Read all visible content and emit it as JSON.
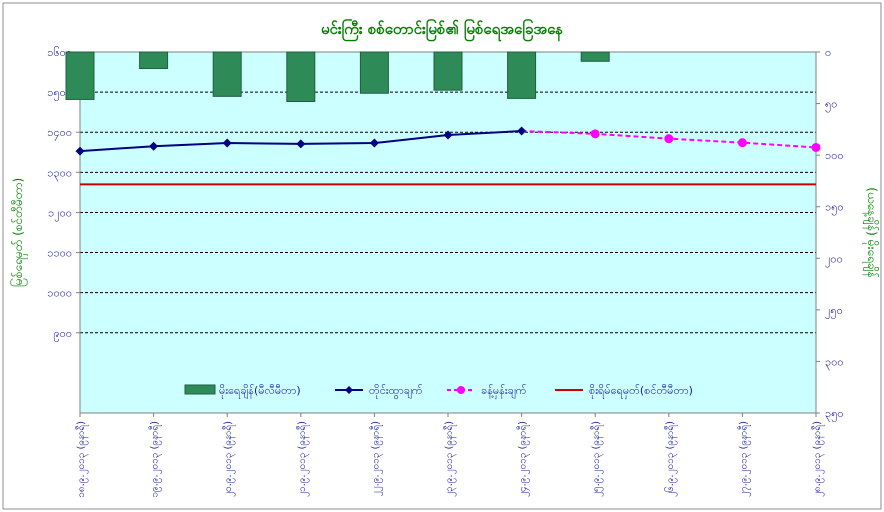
{
  "chart_data": {
    "type": "line",
    "title": "မင်းကြီး စစ်တောင်းမြစ်၏ မြစ်ရေအခြေအနေ",
    "ylabel": "မြစ်ရေမှတ် (စင်တီမီတာ)",
    "y2label": "(ယနေ့ချိန်) မိုးရေချိန်",
    "ylim": [
      700,
      1600
    ],
    "y_ticks": [
      {
        "value": 1600,
        "label": "၁၆၀၀"
      },
      {
        "value": 1500,
        "label": "၁၅၀၀"
      },
      {
        "value": 1400,
        "label": "၁၄၀၀"
      },
      {
        "value": 1300,
        "label": "၁၃၀၀"
      },
      {
        "value": 1200,
        "label": "၁၂၀၀"
      },
      {
        "value": 1100,
        "label": "၁၁၀၀"
      },
      {
        "value": 1000,
        "label": "၁၀၀၀"
      },
      {
        "value": 900,
        "label": "၉၀၀"
      }
    ],
    "y2lim": [
      0,
      350
    ],
    "y2_reversed": true,
    "y2_ticks": [
      {
        "value": 0,
        "label": "၀"
      },
      {
        "value": 50,
        "label": "၅၀"
      },
      {
        "value": 100,
        "label": "၁၀၀"
      },
      {
        "value": 150,
        "label": "၁၅၀"
      },
      {
        "value": 200,
        "label": "၂၀၀"
      },
      {
        "value": 250,
        "label": "၂၅၀"
      },
      {
        "value": 300,
        "label": "၃၀၀"
      },
      {
        "value": 350,
        "label": "၃၅၀"
      }
    ],
    "categories": [
      "၁၈.၉.၂၀၁၃ (၉နာရီ)",
      "၁၉.၉.၂၀၁၃ (၉နာရီ)",
      "၂၀.၉.၂၀၁၃ (၉နာရီ)",
      "၂၁.၉.၂၀၁၃ (၉နာရီ)",
      "၂၂.၉.၂၀၁၃ (၉နာရီ)",
      "၂၃.၉.၂၀၁၃ (၉နာရီ)",
      "၂၄.၉.၂၀၁၃ (၉နာရီ)",
      "၂၅.၉.၂၀၁၃ (၉နာရီ)",
      "၂၆.၉.၂၀၁၃ (၉နာရီ)",
      "၂၇.၉.၂၀၁၃ (၉နာရီ)",
      "၂၈.၉.၂၀၁၃ (၉နာရီ)"
    ],
    "legend_position": "bottom",
    "grid": true,
    "colors": {
      "plot_bg": "#ccffff",
      "title": "#008000",
      "axis_text": "#1a1aa0",
      "rainfall": "#2e8b57",
      "observed": "#000080",
      "forecast": "#ff00ff",
      "danger": "#cc0000"
    },
    "series": [
      {
        "name": "မိုးရေချိန်(မီလီမီတာ)",
        "type": "bar",
        "axis": "y2",
        "values": [
          46,
          16,
          43,
          48,
          40,
          37,
          45,
          9,
          null,
          null,
          null
        ]
      },
      {
        "name": "တိုင်းထွာချက်",
        "type": "line",
        "axis": "y",
        "values": [
          1353,
          1365,
          1373,
          1371,
          1373,
          1393,
          1403,
          null,
          null,
          null,
          null
        ]
      },
      {
        "name": "ခန့်မှန်းချက်",
        "type": "line-dashed",
        "axis": "y",
        "values": [
          null,
          null,
          null,
          null,
          null,
          null,
          1403,
          1396,
          1384,
          1374,
          1362
        ]
      },
      {
        "name": "စိုးရိမ်ရေမှတ်(စင်တီမီတာ)",
        "type": "hline",
        "axis": "y",
        "value": 1270
      }
    ]
  }
}
